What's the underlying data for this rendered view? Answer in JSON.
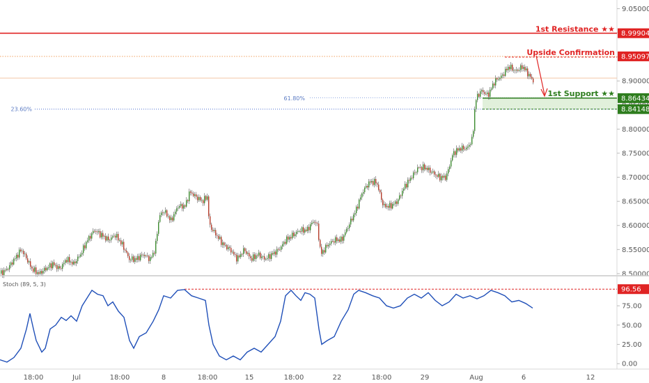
{
  "chart_data": [
    {
      "type": "candlestick",
      "y_ticks": [
        "9.05000",
        "9.00000",
        "8.95000",
        "8.90000",
        "8.85000",
        "8.80000",
        "8.75000",
        "8.70000",
        "8.65000",
        "8.60000",
        "8.55000",
        "8.50000"
      ],
      "x_ticks": [
        "18:00",
        "Jul",
        "18:00",
        "8",
        "18:00",
        "15",
        "18:00",
        "22",
        "18:00",
        "29",
        "18:00",
        "Aug",
        "6",
        "12"
      ],
      "ylim": [
        8.497,
        9.068
      ],
      "grid": false,
      "levels": {
        "resistance": {
          "label": "1st Resistance ★★",
          "value": "8.99904",
          "color": "#e02424"
        },
        "upside_confirmation": {
          "label": "Upside Confirmation",
          "value": "8.95097",
          "color": "#e02424"
        },
        "support": {
          "label": "1st Support ★★",
          "value": "8.86434",
          "color": "#2e7d1e"
        },
        "support_lower": {
          "value": "8.84148",
          "color": "#2e7d1e"
        },
        "fib_61": {
          "label": "61.80%"
        },
        "fib_23": {
          "label": "23.60%"
        }
      },
      "price_path": [
        [
          0,
          8.5
        ],
        [
          10,
          8.51
        ],
        [
          20,
          8.53
        ],
        [
          30,
          8.55
        ],
        [
          38,
          8.53
        ],
        [
          45,
          8.51
        ],
        [
          55,
          8.5
        ],
        [
          65,
          8.51
        ],
        [
          75,
          8.52
        ],
        [
          85,
          8.51
        ],
        [
          95,
          8.53
        ],
        [
          105,
          8.52
        ],
        [
          115,
          8.54
        ],
        [
          125,
          8.57
        ],
        [
          135,
          8.59
        ],
        [
          145,
          8.58
        ],
        [
          155,
          8.57
        ],
        [
          165,
          8.58
        ],
        [
          175,
          8.56
        ],
        [
          185,
          8.53
        ],
        [
          195,
          8.53
        ],
        [
          205,
          8.54
        ],
        [
          215,
          8.53
        ],
        [
          222,
          8.55
        ],
        [
          228,
          8.62
        ],
        [
          235,
          8.63
        ],
        [
          245,
          8.61
        ],
        [
          255,
          8.64
        ],
        [
          265,
          8.64
        ],
        [
          272,
          8.67
        ],
        [
          280,
          8.66
        ],
        [
          290,
          8.65
        ],
        [
          297,
          8.66
        ],
        [
          300,
          8.6
        ],
        [
          310,
          8.58
        ],
        [
          320,
          8.56
        ],
        [
          330,
          8.55
        ],
        [
          340,
          8.53
        ],
        [
          350,
          8.55
        ],
        [
          360,
          8.53
        ],
        [
          370,
          8.54
        ],
        [
          380,
          8.53
        ],
        [
          390,
          8.54
        ],
        [
          400,
          8.55
        ],
        [
          410,
          8.57
        ],
        [
          420,
          8.58
        ],
        [
          430,
          8.59
        ],
        [
          440,
          8.59
        ],
        [
          450,
          8.61
        ],
        [
          455,
          8.6
        ],
        [
          460,
          8.54
        ],
        [
          470,
          8.56
        ],
        [
          480,
          8.57
        ],
        [
          490,
          8.57
        ],
        [
          500,
          8.6
        ],
        [
          510,
          8.63
        ],
        [
          520,
          8.67
        ],
        [
          530,
          8.69
        ],
        [
          540,
          8.69
        ],
        [
          550,
          8.64
        ],
        [
          560,
          8.64
        ],
        [
          570,
          8.65
        ],
        [
          580,
          8.68
        ],
        [
          590,
          8.7
        ],
        [
          600,
          8.72
        ],
        [
          610,
          8.72
        ],
        [
          620,
          8.71
        ],
        [
          630,
          8.7
        ],
        [
          640,
          8.7
        ],
        [
          650,
          8.75
        ],
        [
          660,
          8.76
        ],
        [
          670,
          8.76
        ],
        [
          678,
          8.78
        ],
        [
          682,
          8.86
        ],
        [
          690,
          8.88
        ],
        [
          700,
          8.87
        ],
        [
          710,
          8.9
        ],
        [
          720,
          8.91
        ],
        [
          730,
          8.93
        ],
        [
          740,
          8.92
        ],
        [
          750,
          8.93
        ],
        [
          760,
          8.91
        ],
        [
          765,
          8.9
        ]
      ]
    },
    {
      "type": "line",
      "title": "Stoch (89, 5, 3)",
      "y_ticks": [
        "75.00",
        "50.00",
        "25.00",
        "0.00"
      ],
      "ylim": [
        -7,
        113
      ],
      "level_value": "96.56",
      "level_color": "#e02424",
      "line_color": "#1f4fb8",
      "series": [
        [
          0,
          5
        ],
        [
          10,
          2
        ],
        [
          20,
          8
        ],
        [
          30,
          20
        ],
        [
          38,
          45
        ],
        [
          43,
          65
        ],
        [
          48,
          45
        ],
        [
          52,
          30
        ],
        [
          60,
          15
        ],
        [
          65,
          20
        ],
        [
          72,
          45
        ],
        [
          80,
          50
        ],
        [
          88,
          60
        ],
        [
          95,
          56
        ],
        [
          102,
          62
        ],
        [
          110,
          55
        ],
        [
          118,
          75
        ],
        [
          125,
          85
        ],
        [
          132,
          95
        ],
        [
          140,
          90
        ],
        [
          148,
          88
        ],
        [
          155,
          75
        ],
        [
          162,
          80
        ],
        [
          170,
          68
        ],
        [
          178,
          60
        ],
        [
          186,
          30
        ],
        [
          192,
          20
        ],
        [
          200,
          35
        ],
        [
          210,
          40
        ],
        [
          220,
          55
        ],
        [
          228,
          70
        ],
        [
          235,
          88
        ],
        [
          245,
          85
        ],
        [
          255,
          95
        ],
        [
          265,
          96
        ],
        [
          275,
          88
        ],
        [
          285,
          85
        ],
        [
          295,
          82
        ],
        [
          300,
          50
        ],
        [
          306,
          25
        ],
        [
          315,
          10
        ],
        [
          325,
          5
        ],
        [
          335,
          10
        ],
        [
          345,
          5
        ],
        [
          355,
          15
        ],
        [
          365,
          20
        ],
        [
          375,
          15
        ],
        [
          385,
          25
        ],
        [
          395,
          35
        ],
        [
          403,
          55
        ],
        [
          410,
          88
        ],
        [
          418,
          95
        ],
        [
          425,
          88
        ],
        [
          432,
          82
        ],
        [
          438,
          92
        ],
        [
          445,
          90
        ],
        [
          452,
          85
        ],
        [
          458,
          45
        ],
        [
          462,
          25
        ],
        [
          470,
          30
        ],
        [
          480,
          35
        ],
        [
          490,
          55
        ],
        [
          500,
          70
        ],
        [
          508,
          90
        ],
        [
          515,
          95
        ],
        [
          525,
          92
        ],
        [
          535,
          88
        ],
        [
          545,
          85
        ],
        [
          555,
          75
        ],
        [
          565,
          72
        ],
        [
          575,
          75
        ],
        [
          585,
          85
        ],
        [
          595,
          90
        ],
        [
          605,
          85
        ],
        [
          615,
          92
        ],
        [
          625,
          82
        ],
        [
          635,
          75
        ],
        [
          645,
          80
        ],
        [
          655,
          90
        ],
        [
          665,
          85
        ],
        [
          675,
          88
        ],
        [
          685,
          84
        ],
        [
          695,
          88
        ],
        [
          705,
          95
        ],
        [
          715,
          92
        ],
        [
          725,
          88
        ],
        [
          735,
          80
        ],
        [
          745,
          82
        ],
        [
          755,
          78
        ],
        [
          765,
          72
        ]
      ]
    }
  ]
}
